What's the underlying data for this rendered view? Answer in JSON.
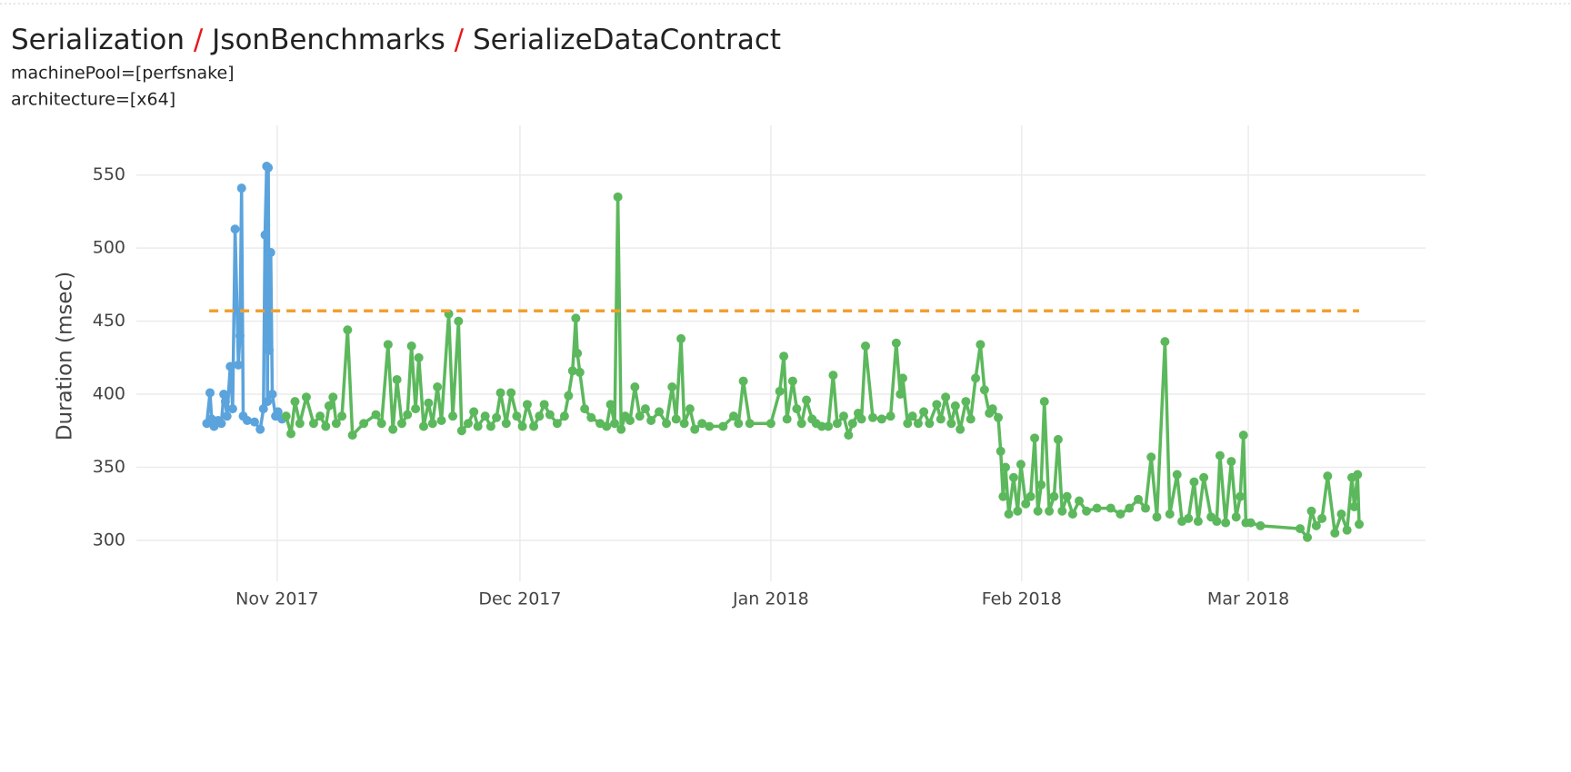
{
  "chart_data": {
    "type": "line",
    "title_parts": [
      "Serialization",
      "JsonBenchmarks",
      "SerializeDataContract"
    ],
    "separator": "/",
    "subtitle_lines": [
      "machinePool=[perfsnake]",
      "architecture=[x64]"
    ],
    "y_label": "Duration (msec)",
    "xlim": [
      -17.4,
      141.9
    ],
    "xticks": [
      {
        "value": 0,
        "label": "Nov 2017"
      },
      {
        "value": 30,
        "label": "Dec 2017"
      },
      {
        "value": 61,
        "label": "Jan 2018"
      },
      {
        "value": 92,
        "label": "Feb 2018"
      },
      {
        "value": 120,
        "label": "Mar 2018"
      }
    ],
    "ylim": [
      272,
      584
    ],
    "yticks": [
      300,
      350,
      400,
      450,
      500,
      550
    ],
    "grid": true,
    "series": [
      {
        "color": "#5ba3dc",
        "markers": true,
        "dash": false,
        "x": [
          -8.7,
          -8.3,
          -8.1,
          -7.8,
          -7.3,
          -6.9,
          -6.6,
          -6.4,
          -6.2,
          -5.8,
          -5.5,
          -5.2,
          -4.8,
          -4.6,
          -4.4,
          -4.2,
          -3.7,
          -2.8,
          -2.1,
          -1.7,
          -1.5,
          -1.3,
          -1.2,
          -1.1,
          -1.0,
          -0.8,
          -0.6,
          -0.2,
          0.1,
          0.6
        ],
        "values": [
          380,
          401,
          383,
          378,
          382,
          380,
          400,
          395,
          385,
          419,
          390,
          513,
          420,
          440,
          541,
          385,
          382,
          381,
          376,
          390,
          509,
          556,
          395,
          555,
          430,
          497,
          400,
          385,
          388,
          383
        ]
      },
      {
        "color": "#5cb85c",
        "markers": true,
        "dash": false,
        "x": [
          1.1,
          1.7,
          2.2,
          2.8,
          3.6,
          4.5,
          5.3,
          6.0,
          6.4,
          6.9,
          7.3,
          8.0,
          8.7,
          9.3,
          10.7,
          12.2,
          12.9,
          13.7,
          14.3,
          14.8,
          15.4,
          16.1,
          16.6,
          17.1,
          17.5,
          18.1,
          18.7,
          19.2,
          19.8,
          20.3,
          21.2,
          21.7,
          22.4,
          22.8,
          23.6,
          24.3,
          24.8,
          25.7,
          26.4,
          27.1,
          27.6,
          28.3,
          28.9,
          29.6,
          30.3,
          30.9,
          31.7,
          32.4,
          33.0,
          33.7,
          34.6,
          35.5,
          36.0,
          36.5,
          36.9,
          37.1,
          37.4,
          38.0,
          38.8,
          39.9,
          40.7,
          41.2,
          41.7,
          42.1,
          42.5,
          43.0,
          43.6,
          44.2,
          44.8,
          45.5,
          46.2,
          47.2,
          48.1,
          48.8,
          49.3,
          49.9,
          50.3,
          51.0,
          51.6,
          52.5,
          53.4,
          55.1,
          56.4,
          57.0,
          57.6,
          58.4,
          61.0,
          62.1,
          62.6,
          63.0,
          63.7,
          64.2,
          64.8,
          65.4,
          66.1,
          66.6,
          67.3,
          68.1,
          68.7,
          69.2,
          70.0,
          70.6,
          71.1,
          71.8,
          72.2,
          72.7,
          73.6,
          74.7,
          75.8,
          76.5,
          77.0,
          77.3,
          77.9,
          78.5,
          79.2,
          79.9,
          80.6,
          81.5,
          82.0,
          82.6,
          83.3,
          83.8,
          84.4,
          85.1,
          85.7,
          86.3,
          86.9,
          87.4,
          88.0,
          88.4,
          89.1,
          89.4,
          89.7,
          90.0,
          90.4,
          91.0,
          91.5,
          91.9,
          92.5,
          93.1,
          93.6,
          94.0,
          94.4,
          94.8,
          95.4,
          96.0,
          96.5,
          97.0,
          97.6,
          98.3,
          99.1,
          100.0,
          101.3,
          103.0,
          104.2,
          105.3,
          106.4,
          107.3,
          108.0,
          108.7,
          109.7,
          110.3,
          111.2,
          111.8,
          112.6,
          113.3,
          113.8,
          114.5,
          115.4,
          116.1,
          116.5,
          117.2,
          117.9,
          118.5,
          119.0,
          119.4,
          119.7,
          120.3,
          121.5,
          126.4,
          127.3,
          127.8,
          128.4,
          129.1,
          129.8,
          130.7,
          131.5,
          132.2,
          132.8,
          133.1,
          133.5,
          133.7
        ],
        "values": [
          385,
          373,
          395,
          380,
          398,
          380,
          385,
          378,
          392,
          398,
          380,
          385,
          444,
          372,
          380,
          386,
          380,
          434,
          376,
          410,
          380,
          386,
          433,
          390,
          425,
          378,
          394,
          380,
          405,
          382,
          455,
          385,
          450,
          375,
          380,
          388,
          378,
          385,
          378,
          384,
          401,
          380,
          401,
          385,
          378,
          393,
          378,
          385,
          393,
          386,
          380,
          385,
          399,
          416,
          452,
          428,
          415,
          390,
          384,
          380,
          378,
          393,
          380,
          535,
          376,
          385,
          382,
          405,
          385,
          390,
          382,
          388,
          380,
          405,
          383,
          438,
          380,
          390,
          376,
          380,
          378,
          378,
          385,
          380,
          409,
          380,
          380,
          402,
          426,
          383,
          409,
          390,
          380,
          396,
          383,
          380,
          378,
          378,
          413,
          380,
          385,
          372,
          380,
          387,
          383,
          433,
          384,
          383,
          385,
          435,
          400,
          411,
          380,
          385,
          380,
          388,
          380,
          393,
          383,
          398,
          380,
          392,
          376,
          395,
          383,
          411,
          434,
          403,
          387,
          390,
          384,
          361,
          330,
          350,
          318,
          343,
          320,
          352,
          325,
          330,
          370,
          320,
          338,
          395,
          320,
          330,
          369,
          320,
          330,
          318,
          327,
          320,
          322,
          322,
          318,
          322,
          328,
          322,
          357,
          316,
          436,
          318,
          345,
          313,
          315,
          340,
          313,
          343,
          316,
          313,
          358,
          312,
          354,
          316,
          330,
          372,
          312,
          312,
          310,
          308,
          302,
          320,
          310,
          315,
          344,
          305,
          318,
          307,
          343,
          323,
          345,
          311
        ]
      },
      {
        "color": "#f0a030",
        "markers": false,
        "dash": true,
        "x": [
          -8.4,
          133.7
        ],
        "values": [
          457,
          457
        ]
      }
    ]
  }
}
